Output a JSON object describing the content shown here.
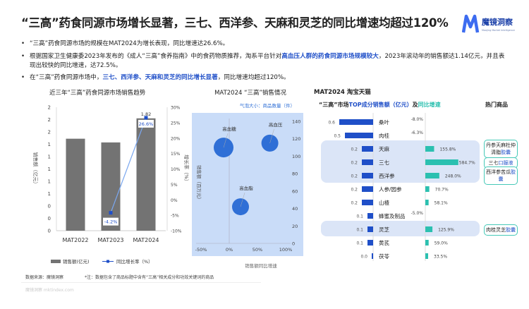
{
  "title": "“三高”药食同源市场增长显著，三七、西洋参、天麻和灵芝的同比增速均超过120%",
  "logo": {
    "name": "魔镜洞察",
    "sub": "Moojing Market Intelligence",
    "color": "#3d6cf0"
  },
  "bullets": [
    {
      "parts": [
        {
          "t": "“三高”药食同源市场的规模在MAT2024为增长表现，同比增速达26.6%。"
        }
      ]
    },
    {
      "parts": [
        {
          "t": "根据国家卫生健康委2023年发布的《成人“三高”食养指南》中的食药物质推荐，淘系平台针对"
        },
        {
          "t": "高血压人群的药食同源市场规模较大",
          "hl": true
        },
        {
          "t": "，2023年滚动年的销售额达1.14亿元，并且表现出较快的同比增速，达72.5%。"
        }
      ]
    },
    {
      "parts": [
        {
          "t": "在“三高”药食同源市场中，"
        },
        {
          "t": "三七、西洋参、天麻和灵芝的同比增长显著",
          "hl": true
        },
        {
          "t": "，同比增速均超过120%。"
        }
      ]
    }
  ],
  "chart_data": [
    {
      "type": "bar",
      "title": "近三年“三高”药食同源市场销售趋势",
      "categories": [
        "MAT2022",
        "MAT2023",
        "MAT2024"
      ],
      "series": [
        {
          "name": "销售额(亿元)",
          "type": "bar",
          "values": [
            1.49,
            1.43,
            1.82
          ],
          "color": "#737373"
        },
        {
          "name": "同比增长率（%）",
          "type": "line",
          "values": [
            null,
            -4.2,
            26.6
          ],
          "color": "#1f4fc8"
        }
      ],
      "data_labels": {
        "bar": [
          null,
          null,
          "1.82"
        ],
        "line": [
          null,
          "-4.2%",
          "26.6%"
        ]
      },
      "ylabel": "销售额（亿元）",
      "y2label": "增长率（%）",
      "ylim": [
        0,
        2
      ],
      "y_ticks": [
        "0",
        "0",
        "0",
        "1",
        "1",
        "1",
        "1",
        "1",
        "2",
        "2",
        "2"
      ],
      "y2lim": [
        -10,
        30
      ],
      "y2_ticks": [
        "-10%",
        "-5%",
        "0%",
        "5%",
        "10%",
        "15%",
        "20%",
        "25%",
        "30%"
      ],
      "legend": "bottom"
    },
    {
      "type": "scatter",
      "title": "MAT2024 “三高”销售情况",
      "subtitle": "气泡大小：商品数量（件）",
      "xlabel": "销售额同比增速",
      "ylabel": "销售额（百万元）",
      "xlim": [
        -50,
        100
      ],
      "x_ticks": [
        "-50%",
        "0%",
        "50%",
        "100%"
      ],
      "ylim": [
        0,
        140
      ],
      "y_ticks": [
        "0",
        "20",
        "40",
        "60",
        "80",
        "100",
        "120",
        "140"
      ],
      "points": [
        {
          "label": "高血糖",
          "x": -10,
          "y": 110,
          "size": "large"
        },
        {
          "label": "高血压",
          "x": 72,
          "y": 115,
          "size": "medium"
        },
        {
          "label": "高血脂",
          "x": 20,
          "y": 42,
          "size": "medium"
        }
      ],
      "background": "#c9dcf8",
      "bubble_color": "#2f6fd6"
    },
    {
      "type": "bar",
      "title": "MAT2024 淘宝天猫",
      "subtitle_parts": [
        {
          "t": "“三高”市场"
        },
        {
          "t": "TOP成分销售额（亿元）",
          "c": "#1f4fc8"
        },
        {
          "t": "及"
        },
        {
          "t": "同比增速",
          "c": "#2bc0b0"
        }
      ],
      "hot_header": "热门商品",
      "categories": [
        "桑叶",
        "肉桂",
        "天麻",
        "三七",
        "西洋参",
        "人参/园参",
        "山楂",
        "蜂蜜及制品",
        "灵芝",
        "黄芪",
        "茯苓"
      ],
      "series": [
        {
          "name": "销售额（亿元）",
          "values": [
            0.6,
            0.5,
            0.2,
            0.2,
            0.2,
            0.2,
            0.2,
            0.1,
            0.1,
            0.1,
            0.0
          ],
          "color": "#1f4fc8"
        },
        {
          "name": "同比增速",
          "values": [
            -8.0,
            -6.3,
            155.8,
            584.7,
            248.0,
            70.7,
            58.1,
            -5.0,
            125.9,
            59.0,
            33.5
          ],
          "color": "#2bc0b0"
        }
      ],
      "value_labels": [
        "0.6",
        "0.5",
        "0.2",
        "0.2",
        "0.2",
        "0.2",
        "0.2",
        "0.1",
        "0.1",
        "0.1",
        "0.0"
      ],
      "growth_labels": [
        "-8.0%",
        "-6.3%",
        "155.8%",
        "584.7%",
        "248.0%",
        "70.7%",
        "58.1%",
        "-5.0%",
        "125.9%",
        "59.0%",
        "33.5%"
      ],
      "highlighted": [
        "天麻",
        "三七",
        "西洋参",
        "灵芝"
      ],
      "hot_products": [
        {
          "row": "天麻",
          "t": "丹参天麻杜仲清脂",
          "hl": "胶囊"
        },
        {
          "row": "三七",
          "t": "三七",
          "hl": "口服液"
        },
        {
          "row": "西洋参",
          "t": "西洋参苦瓜",
          "hl": "胶囊"
        },
        {
          "row": "灵芝",
          "t": "肉桂灵芝",
          "hl": "胶囊"
        }
      ]
    }
  ],
  "footer": {
    "source": "数据来源：魔镜洞察",
    "note": "*注：数据包含了商品标题中含有“三高”相关成分和功效关键词的商品",
    "watermark": "魔镜洞察  mktindex.com"
  }
}
